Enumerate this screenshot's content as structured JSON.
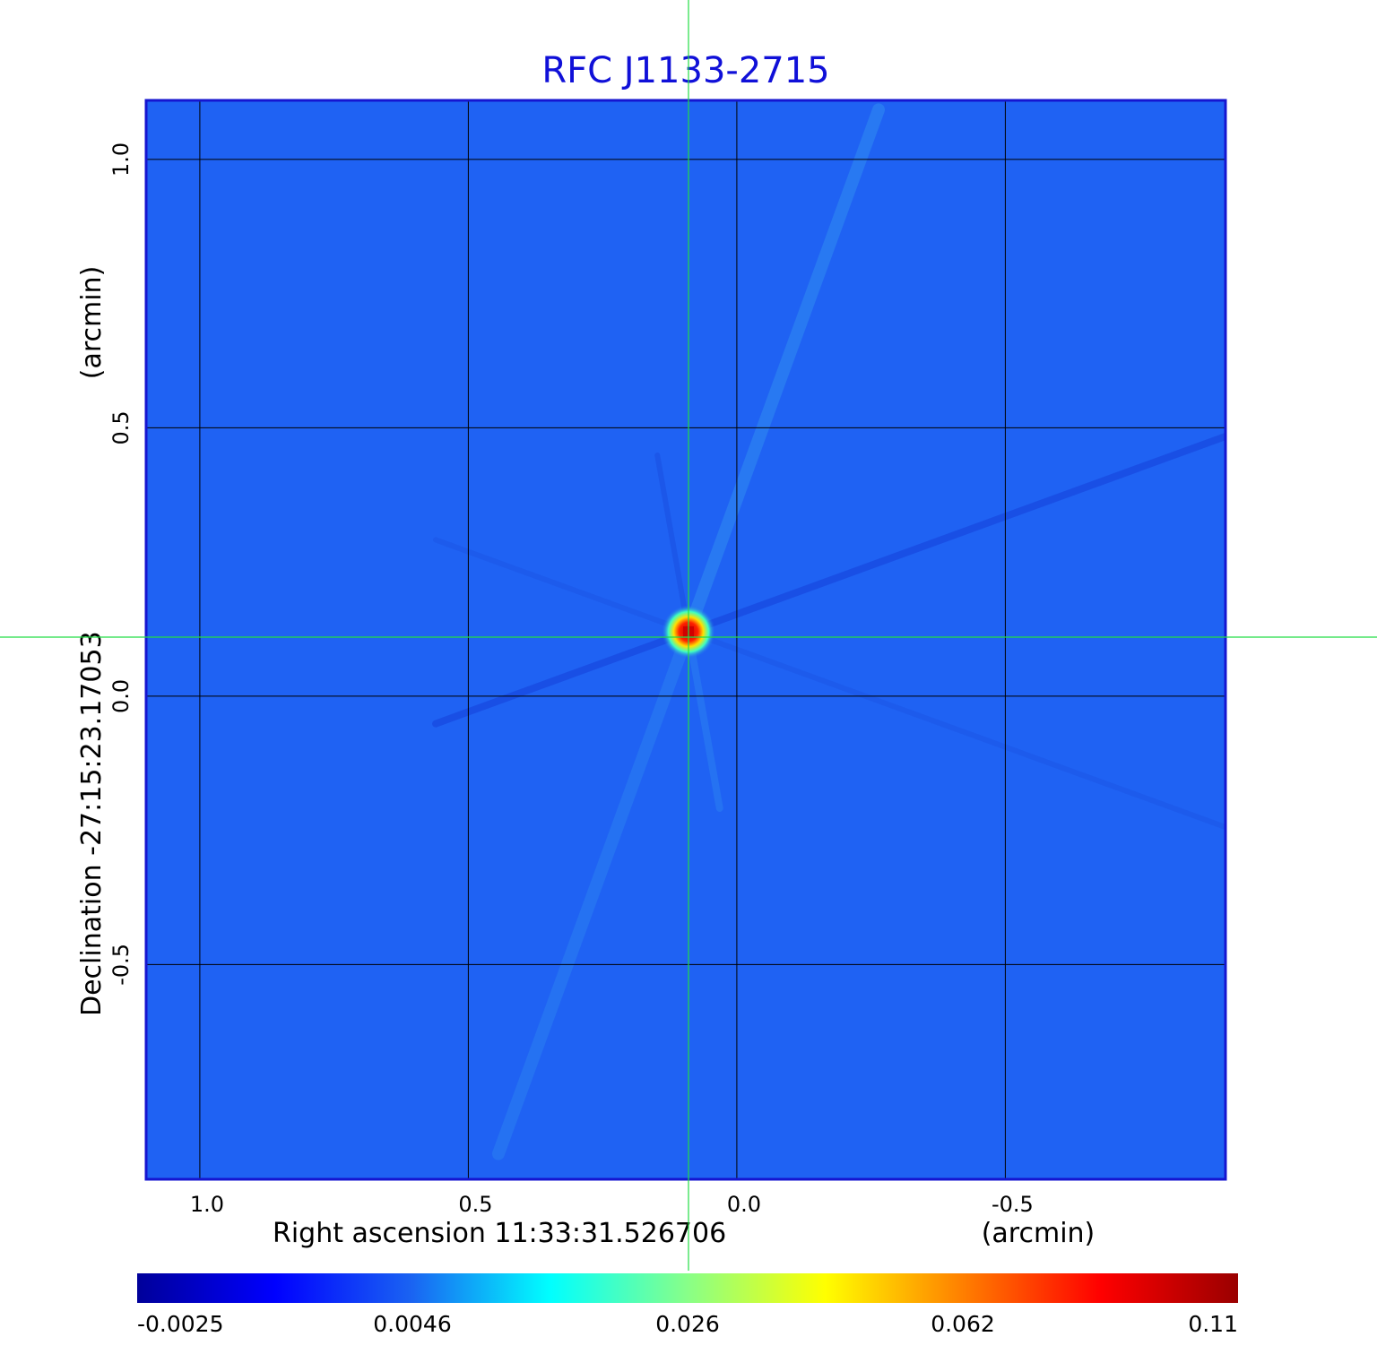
{
  "colors": {
    "title": "#1010d8",
    "frame": "#1515d0",
    "background_map": "#1f62f3",
    "grid": "#000000",
    "crosshair": "#22dd44"
  },
  "chart_data": {
    "type": "heatmap",
    "title": "RFC J1133-2715",
    "xlabel": "Right ascension  11:33:31.526706",
    "xunit": "(arcmin)",
    "ylabel": "Declination  -27:15:23.17053",
    "yunit": "(arcmin)",
    "x_ticks": [
      "1.0",
      "0.5",
      "0.0",
      "-0.5"
    ],
    "x_tick_values": [
      1.0,
      0.5,
      0.0,
      -0.5
    ],
    "y_ticks": [
      "1.0",
      "0.5",
      "0.0",
      "-0.5"
    ],
    "y_tick_values": [
      1.0,
      0.5,
      0.0,
      -0.5
    ],
    "xlim": [
      1.1,
      -0.91
    ],
    "ylim": [
      -0.9,
      1.11
    ],
    "grid": true,
    "crosshair": {
      "x": 0.09,
      "y": 0.11
    },
    "source_peak": {
      "x": 0.09,
      "y": 0.12,
      "value": 0.11
    },
    "colorbar": {
      "ticks": [
        "-0.0025",
        "0.0046",
        "0.026",
        "0.062",
        "0.11"
      ],
      "tick_values": [
        -0.0025,
        0.0046,
        0.026,
        0.062,
        0.11
      ],
      "colors": [
        "#00009a",
        "#0000ff",
        "#1a64f2",
        "#00ffff",
        "#88ff88",
        "#ffff00",
        "#ff7f00",
        "#ff0000",
        "#9a0000"
      ],
      "position": "bottom"
    }
  }
}
